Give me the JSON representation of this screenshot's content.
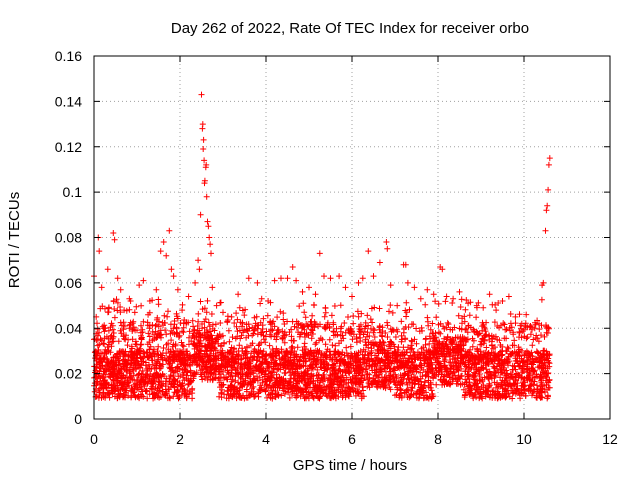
{
  "chart_data": {
    "type": "scatter",
    "title": "Day 262 of 2022, Rate Of TEC Index for receiver orbo",
    "xlabel": "GPS time / hours",
    "ylabel": "ROTI / TECUs",
    "xlim": [
      0,
      12
    ],
    "ylim": [
      0,
      0.16
    ],
    "x_ticks": [
      "0",
      "2",
      "4",
      "6",
      "8",
      "10",
      "12"
    ],
    "y_ticks": [
      "0",
      "0.02",
      "0.04",
      "0.06",
      "0.08",
      "0.1",
      "0.12",
      "0.14",
      "0.16"
    ],
    "grid": true,
    "marker": "+",
    "color": "#ff0000",
    "series": [
      {
        "points": [
          [
            0.0,
            0.063
          ],
          [
            0.05,
            0.045
          ],
          [
            0.08,
            0.029
          ],
          [
            0.1,
            0.08
          ],
          [
            0.12,
            0.074
          ],
          [
            0.18,
            0.058
          ],
          [
            0.25,
            0.04
          ],
          [
            0.32,
            0.066
          ],
          [
            0.45,
            0.082
          ],
          [
            0.48,
            0.079
          ],
          [
            0.55,
            0.062
          ],
          [
            0.62,
            0.057
          ],
          [
            0.7,
            0.048
          ],
          [
            0.85,
            0.052
          ],
          [
            0.95,
            0.047
          ],
          [
            1.05,
            0.059
          ],
          [
            1.15,
            0.061
          ],
          [
            1.3,
            0.052
          ],
          [
            1.45,
            0.057
          ],
          [
            1.55,
            0.074
          ],
          [
            1.62,
            0.078
          ],
          [
            1.68,
            0.072
          ],
          [
            1.75,
            0.083
          ],
          [
            1.8,
            0.066
          ],
          [
            1.85,
            0.063
          ],
          [
            1.95,
            0.057
          ],
          [
            2.05,
            0.048
          ],
          [
            2.2,
            0.054
          ],
          [
            2.35,
            0.06
          ],
          [
            2.42,
            0.07
          ],
          [
            2.45,
            0.066
          ],
          [
            2.48,
            0.09
          ],
          [
            2.5,
            0.143
          ],
          [
            2.52,
            0.128
          ],
          [
            2.53,
            0.13
          ],
          [
            2.54,
            0.119
          ],
          [
            2.55,
            0.123
          ],
          [
            2.56,
            0.114
          ],
          [
            2.57,
            0.104
          ],
          [
            2.58,
            0.105
          ],
          [
            2.6,
            0.111
          ],
          [
            2.61,
            0.112
          ],
          [
            2.62,
            0.098
          ],
          [
            2.64,
            0.087
          ],
          [
            2.66,
            0.085
          ],
          [
            2.68,
            0.08
          ],
          [
            2.7,
            0.077
          ],
          [
            2.72,
            0.073
          ],
          [
            2.75,
            0.058
          ],
          [
            2.85,
            0.05
          ],
          [
            3.0,
            0.047
          ],
          [
            3.1,
            0.043
          ],
          [
            3.2,
            0.045
          ],
          [
            3.35,
            0.055
          ],
          [
            3.6,
            0.062
          ],
          [
            3.8,
            0.06
          ],
          [
            3.9,
            0.053
          ],
          [
            4.05,
            0.052
          ],
          [
            4.2,
            0.061
          ],
          [
            4.35,
            0.062
          ],
          [
            4.5,
            0.062
          ],
          [
            4.62,
            0.067
          ],
          [
            4.7,
            0.061
          ],
          [
            4.85,
            0.056
          ],
          [
            5.0,
            0.058
          ],
          [
            5.15,
            0.055
          ],
          [
            5.25,
            0.073
          ],
          [
            5.35,
            0.063
          ],
          [
            5.5,
            0.062
          ],
          [
            5.7,
            0.063
          ],
          [
            5.85,
            0.058
          ],
          [
            6.0,
            0.054
          ],
          [
            6.15,
            0.06
          ],
          [
            6.25,
            0.062
          ],
          [
            6.38,
            0.074
          ],
          [
            6.5,
            0.063
          ],
          [
            6.65,
            0.069
          ],
          [
            6.8,
            0.078
          ],
          [
            6.82,
            0.075
          ],
          [
            6.9,
            0.059
          ],
          [
            7.05,
            0.05
          ],
          [
            7.2,
            0.068
          ],
          [
            7.25,
            0.068
          ],
          [
            7.3,
            0.06
          ],
          [
            7.45,
            0.058
          ],
          [
            7.6,
            0.053
          ],
          [
            7.75,
            0.057
          ],
          [
            7.9,
            0.055
          ],
          [
            8.05,
            0.067
          ],
          [
            8.1,
            0.066
          ],
          [
            8.2,
            0.054
          ],
          [
            8.35,
            0.053
          ],
          [
            8.5,
            0.056
          ],
          [
            8.7,
            0.051
          ],
          [
            8.9,
            0.05
          ],
          [
            9.05,
            0.049
          ],
          [
            9.2,
            0.055
          ],
          [
            9.35,
            0.048
          ],
          [
            9.5,
            0.052
          ],
          [
            9.65,
            0.054
          ],
          [
            9.8,
            0.045
          ],
          [
            9.95,
            0.042
          ],
          [
            10.05,
            0.046
          ],
          [
            10.15,
            0.041
          ],
          [
            10.25,
            0.04
          ],
          [
            10.35,
            0.042
          ],
          [
            10.42,
            0.059
          ],
          [
            10.45,
            0.06
          ],
          [
            10.5,
            0.083
          ],
          [
            10.52,
            0.092
          ],
          [
            10.54,
            0.094
          ],
          [
            10.56,
            0.101
          ],
          [
            10.58,
            0.112
          ],
          [
            10.6,
            0.115
          ]
        ]
      }
    ]
  }
}
